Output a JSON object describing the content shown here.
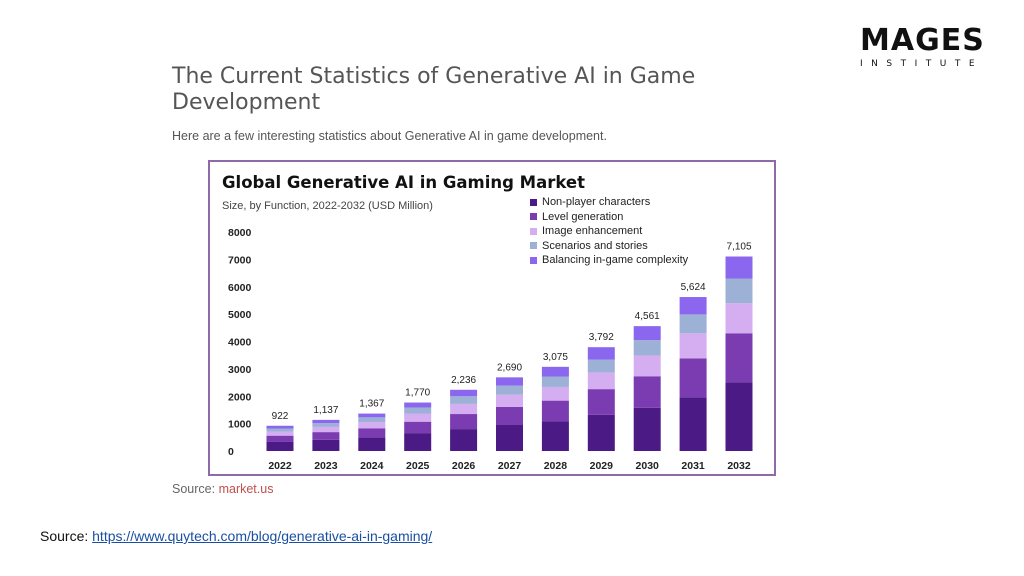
{
  "logo": {
    "word": "MAGES",
    "sub": "INSTITUTE"
  },
  "heading": "The Current Statistics of Generative AI in Game Development",
  "intro": "Here are a few interesting statistics about Generative AI in game development.",
  "source_inner": {
    "label": "Source:",
    "value": "market.us"
  },
  "source_page": {
    "label": "Source:",
    "url": "https://www.quytech.com/blog/generative-ai-in-gaming/"
  },
  "colors": {
    "npc": "#4b1a84",
    "level": "#7a3cb0",
    "image": "#d4aef0",
    "scenarios": "#9db0d6",
    "balancing": "#8a67ee",
    "frame": "#8e6aa8"
  },
  "chart_data": {
    "type": "bar",
    "stacked": true,
    "title": "Global Generative AI in Gaming Market",
    "subtitle": "Size, by Function, 2022-2032 (USD Million)",
    "categories": [
      "2022",
      "2023",
      "2024",
      "2025",
      "2026",
      "2027",
      "2028",
      "2029",
      "2030",
      "2031",
      "2032"
    ],
    "totals": [
      922,
      1137,
      1367,
      1770,
      2236,
      2690,
      3075,
      3792,
      4561,
      5624,
      7105
    ],
    "total_labels": [
      "922",
      "1,137",
      "1,367",
      "1,770",
      "2,236",
      "2,690",
      "3,075",
      "3,792",
      "4,561",
      "5,624",
      "7,105"
    ],
    "series": [
      {
        "name": "Non-player characters",
        "color_key": "npc",
        "values": [
          330,
          410,
          490,
          640,
          800,
          950,
          1080,
          1320,
          1580,
          1960,
          2500
        ]
      },
      {
        "name": "Level generation",
        "color_key": "level",
        "values": [
          230,
          280,
          340,
          430,
          550,
          660,
          760,
          940,
          1150,
          1420,
          1800
        ]
      },
      {
        "name": "Image enhancement",
        "color_key": "image",
        "values": [
          150,
          190,
          230,
          300,
          370,
          450,
          500,
          610,
          760,
          920,
          1100
        ]
      },
      {
        "name": "Scenarios and stories",
        "color_key": "scenarios",
        "values": [
          110,
          140,
          170,
          220,
          280,
          330,
          380,
          470,
          560,
          690,
          900
        ]
      },
      {
        "name": "Balancing in-game complexity",
        "color_key": "balancing",
        "values": [
          102,
          117,
          137,
          180,
          236,
          300,
          355,
          452,
          511,
          634,
          805
        ]
      }
    ],
    "ylim": [
      0,
      8000
    ],
    "yticks": [
      "0",
      "1000",
      "2000",
      "3000",
      "4000",
      "5000",
      "6000",
      "7000",
      "8000"
    ],
    "grid": false,
    "legend": "top-right"
  }
}
